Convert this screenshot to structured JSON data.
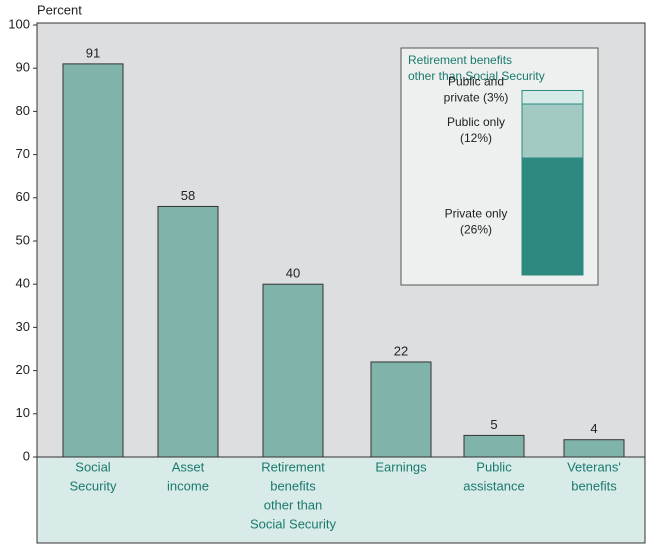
{
  "chart_data": {
    "type": "bar",
    "y_label": "Percent",
    "categories": [
      [
        "Social",
        "Security"
      ],
      [
        "Asset",
        "income"
      ],
      [
        "Retirement",
        "benefits",
        "other than",
        "Social Security"
      ],
      [
        "Earnings"
      ],
      [
        "Public",
        "assistance"
      ],
      [
        "Veterans'",
        "benefits"
      ]
    ],
    "values": [
      91,
      58,
      40,
      22,
      5,
      4
    ],
    "color": "#80b3aa",
    "ylim": [
      0,
      100
    ],
    "yticks": [
      0,
      10,
      20,
      30,
      40,
      50,
      60,
      70,
      80,
      90,
      100
    ],
    "inset": {
      "type": "stacked-bar",
      "title": [
        "Retirement benefits",
        "other than Social Security"
      ],
      "segments": [
        {
          "label": [
            "Private only",
            "(26%)"
          ],
          "value": 26,
          "color": "#2e8a80"
        },
        {
          "label": [
            "Public only",
            "(12%)"
          ],
          "value": 12,
          "color": "#a3c9c3"
        },
        {
          "label": [
            "Public and",
            "private (3%)"
          ],
          "value": 3,
          "color": "#d6ebe7"
        }
      ]
    }
  }
}
